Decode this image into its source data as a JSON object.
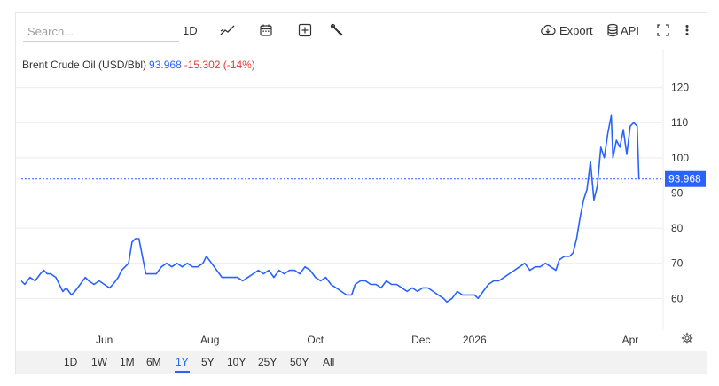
{
  "toolbar": {
    "search_placeholder": "Search...",
    "interval_label": "1D",
    "chart_type_icon": "line-chart-icon",
    "calendar_icon": "calendar-icon",
    "add_icon": "plus-box-icon",
    "tools_icon": "wrench-icon",
    "export_label": "Export",
    "api_label": "API",
    "fullscreen_icon": "expand-icon",
    "more_icon": "more-vertical-icon"
  },
  "legend": {
    "name": "Brent Crude Oil (USD/Bbl)",
    "last": "93.968",
    "change": "-15.302 (-14%)"
  },
  "price_tag": "93.968",
  "settings_icon": "gear-icon",
  "periods": [
    "1D",
    "1W",
    "1M",
    "6M",
    "1Y",
    "5Y",
    "10Y",
    "25Y",
    "50Y",
    "All"
  ],
  "active_period": "1Y",
  "colors": {
    "line": "#2962ff",
    "up": "#2962ff",
    "down": "#e53935",
    "grid": "#ececec",
    "price_tag_bg": "#2962ff"
  },
  "chart_data": {
    "type": "line",
    "title": "Brent Crude Oil (USD/Bbl)",
    "xlabel": "",
    "ylabel": "",
    "x_ticks": [
      "Jun",
      "Aug",
      "Oct",
      "Dec",
      "2026",
      "Apr"
    ],
    "y_ticks": [
      60,
      70,
      80,
      90,
      100,
      110,
      120
    ],
    "ylim": [
      51,
      131
    ],
    "x_range": [
      "2025-04-14",
      "2026-04-20"
    ],
    "grid": true,
    "last_value": 93.968,
    "series": [
      {
        "points": [
          [
            "2025-04-14",
            65
          ],
          [
            "2025-04-16",
            64
          ],
          [
            "2025-04-19",
            66
          ],
          [
            "2025-04-22",
            65
          ],
          [
            "2025-04-25",
            67
          ],
          [
            "2025-04-27",
            68
          ],
          [
            "2025-04-29",
            67
          ],
          [
            "2025-05-01",
            67
          ],
          [
            "2025-05-04",
            66
          ],
          [
            "2025-05-06",
            64
          ],
          [
            "2025-05-08",
            62
          ],
          [
            "2025-05-10",
            63
          ],
          [
            "2025-05-13",
            61
          ],
          [
            "2025-05-15",
            62
          ],
          [
            "2025-05-18",
            64
          ],
          [
            "2025-05-21",
            66
          ],
          [
            "2025-05-23",
            65
          ],
          [
            "2025-05-26",
            64
          ],
          [
            "2025-05-29",
            65
          ],
          [
            "2025-06-01",
            64
          ],
          [
            "2025-06-04",
            63
          ],
          [
            "2025-06-06",
            64
          ],
          [
            "2025-06-09",
            66
          ],
          [
            "2025-06-11",
            68
          ],
          [
            "2025-06-13",
            69
          ],
          [
            "2025-06-15",
            70
          ],
          [
            "2025-06-17",
            76
          ],
          [
            "2025-06-19",
            77
          ],
          [
            "2025-06-21",
            77
          ],
          [
            "2025-06-23",
            72
          ],
          [
            "2025-06-25",
            67
          ],
          [
            "2025-06-28",
            67
          ],
          [
            "2025-07-01",
            67
          ],
          [
            "2025-07-04",
            69
          ],
          [
            "2025-07-07",
            70
          ],
          [
            "2025-07-10",
            69
          ],
          [
            "2025-07-13",
            70
          ],
          [
            "2025-07-16",
            69
          ],
          [
            "2025-07-19",
            70
          ],
          [
            "2025-07-22",
            69
          ],
          [
            "2025-07-25",
            69
          ],
          [
            "2025-07-28",
            70
          ],
          [
            "2025-07-30",
            72
          ],
          [
            "2025-08-02",
            70
          ],
          [
            "2025-08-05",
            68
          ],
          [
            "2025-08-08",
            66
          ],
          [
            "2025-08-11",
            66
          ],
          [
            "2025-08-14",
            66
          ],
          [
            "2025-08-17",
            66
          ],
          [
            "2025-08-20",
            65
          ],
          [
            "2025-08-23",
            66
          ],
          [
            "2025-08-26",
            67
          ],
          [
            "2025-08-29",
            68
          ],
          [
            "2025-09-01",
            67
          ],
          [
            "2025-09-04",
            68
          ],
          [
            "2025-09-07",
            66
          ],
          [
            "2025-09-10",
            68
          ],
          [
            "2025-09-13",
            67
          ],
          [
            "2025-09-16",
            68
          ],
          [
            "2025-09-19",
            68
          ],
          [
            "2025-09-22",
            67
          ],
          [
            "2025-09-25",
            69
          ],
          [
            "2025-09-28",
            68
          ],
          [
            "2025-10-01",
            66
          ],
          [
            "2025-10-04",
            65
          ],
          [
            "2025-10-07",
            66
          ],
          [
            "2025-10-10",
            64
          ],
          [
            "2025-10-13",
            63
          ],
          [
            "2025-10-16",
            62
          ],
          [
            "2025-10-19",
            61
          ],
          [
            "2025-10-22",
            61
          ],
          [
            "2025-10-24",
            64
          ],
          [
            "2025-10-27",
            65
          ],
          [
            "2025-10-30",
            65
          ],
          [
            "2025-11-02",
            64
          ],
          [
            "2025-11-05",
            64
          ],
          [
            "2025-11-08",
            63
          ],
          [
            "2025-11-11",
            65
          ],
          [
            "2025-11-14",
            64
          ],
          [
            "2025-11-17",
            64
          ],
          [
            "2025-11-20",
            63
          ],
          [
            "2025-11-23",
            62
          ],
          [
            "2025-11-26",
            63
          ],
          [
            "2025-11-29",
            62
          ],
          [
            "2025-12-02",
            63
          ],
          [
            "2025-12-05",
            63
          ],
          [
            "2025-12-08",
            62
          ],
          [
            "2025-12-11",
            61
          ],
          [
            "2025-12-14",
            60
          ],
          [
            "2025-12-16",
            59
          ],
          [
            "2025-12-19",
            60
          ],
          [
            "2025-12-22",
            62
          ],
          [
            "2025-12-25",
            61
          ],
          [
            "2025-12-28",
            61
          ],
          [
            "2026-01-01",
            61
          ],
          [
            "2026-01-03",
            60
          ],
          [
            "2026-01-06",
            62
          ],
          [
            "2026-01-09",
            64
          ],
          [
            "2026-01-12",
            65
          ],
          [
            "2026-01-15",
            65
          ],
          [
            "2026-01-18",
            66
          ],
          [
            "2026-01-21",
            67
          ],
          [
            "2026-01-24",
            68
          ],
          [
            "2026-01-27",
            69
          ],
          [
            "2026-01-30",
            70
          ],
          [
            "2026-02-02",
            68
          ],
          [
            "2026-02-05",
            69
          ],
          [
            "2026-02-08",
            69
          ],
          [
            "2026-02-11",
            70
          ],
          [
            "2026-02-14",
            69
          ],
          [
            "2026-02-17",
            68
          ],
          [
            "2026-02-19",
            71
          ],
          [
            "2026-02-22",
            72
          ],
          [
            "2026-02-25",
            72
          ],
          [
            "2026-02-27",
            73
          ],
          [
            "2026-03-01",
            77
          ],
          [
            "2026-03-03",
            83
          ],
          [
            "2026-03-05",
            88
          ],
          [
            "2026-03-07",
            91
          ],
          [
            "2026-03-09",
            99
          ],
          [
            "2026-03-11",
            88
          ],
          [
            "2026-03-13",
            92
          ],
          [
            "2026-03-15",
            103
          ],
          [
            "2026-03-17",
            100
          ],
          [
            "2026-03-19",
            107
          ],
          [
            "2026-03-21",
            112
          ],
          [
            "2026-03-22",
            100
          ],
          [
            "2026-03-24",
            105
          ],
          [
            "2026-03-26",
            103
          ],
          [
            "2026-03-28",
            108
          ],
          [
            "2026-03-30",
            101
          ],
          [
            "2026-04-01",
            109
          ],
          [
            "2026-04-03",
            110
          ],
          [
            "2026-04-05",
            109
          ],
          [
            "2026-04-06",
            94
          ]
        ]
      }
    ]
  }
}
